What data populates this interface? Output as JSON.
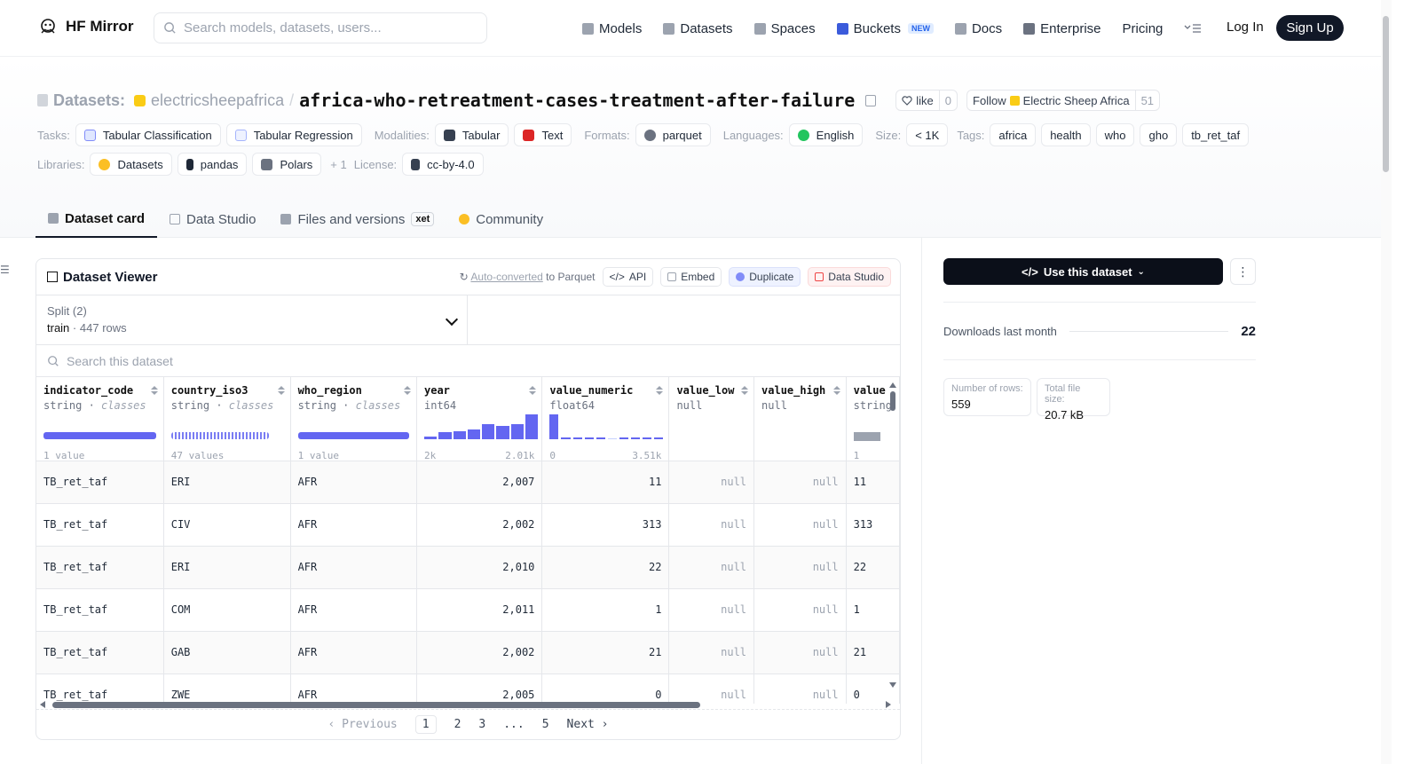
{
  "nav": {
    "brand": "HF Mirror",
    "search_placeholder": "Search models, datasets, users...",
    "links": [
      {
        "label": "Models",
        "icon": "cube-icon"
      },
      {
        "label": "Datasets",
        "icon": "database-icon"
      },
      {
        "label": "Spaces",
        "icon": "grid-icon"
      },
      {
        "label": "Buckets",
        "icon": "bucket-icon",
        "badge": "NEW"
      },
      {
        "label": "Docs",
        "icon": "book-icon"
      },
      {
        "label": "Enterprise",
        "icon": "enterprise-icon"
      },
      {
        "label": "Pricing"
      }
    ],
    "login": "Log In",
    "signup": "Sign Up"
  },
  "header": {
    "section": "Datasets:",
    "org": "electricsheepafrica",
    "name": "africa-who-retreatment-cases-treatment-after-failure",
    "like_label": "like",
    "like_count": "0",
    "follow_label": "Follow",
    "follow_org": "Electric Sheep Africa",
    "follow_count": "51"
  },
  "meta": {
    "tasks_label": "Tasks:",
    "tasks": [
      "Tabular Classification",
      "Tabular Regression"
    ],
    "modalities_label": "Modalities:",
    "modalities": [
      "Tabular",
      "Text"
    ],
    "formats_label": "Formats:",
    "formats": [
      "parquet"
    ],
    "languages_label": "Languages:",
    "languages": [
      "English"
    ],
    "size_label": "Size:",
    "size": "< 1K",
    "tags_label": "Tags:",
    "tags": [
      "africa",
      "health",
      "who",
      "gho",
      "tb_ret_taf"
    ],
    "libraries_label": "Libraries:",
    "libraries": [
      "Datasets",
      "pandas",
      "Polars"
    ],
    "libraries_more": "+ 1",
    "license_label": "License:",
    "license": "cc-by-4.0"
  },
  "tabs": [
    {
      "label": "Dataset card",
      "active": true
    },
    {
      "label": "Data Studio"
    },
    {
      "label": "Files and versions",
      "badge": "xet"
    },
    {
      "label": "Community"
    }
  ],
  "viewer": {
    "title": "Dataset Viewer",
    "auto_converted": "Auto-converted",
    "to_parquet": "to Parquet",
    "buttons": [
      "API",
      "Embed",
      "Duplicate",
      "Data Studio"
    ],
    "split_label": "Split (2)",
    "split_value": "train",
    "split_rows": "447 rows",
    "search_placeholder": "Search this dataset",
    "columns": [
      {
        "name": "indicator_code",
        "type": "string",
        "kind": "classes",
        "stat_left": "1 value",
        "stat_right": ""
      },
      {
        "name": "country_iso3",
        "type": "string",
        "kind": "classes",
        "stat_left": "47 values",
        "stat_right": ""
      },
      {
        "name": "who_region",
        "type": "string",
        "kind": "classes",
        "stat_left": "1 value",
        "stat_right": ""
      },
      {
        "name": "year",
        "type": "int64",
        "kind": "",
        "stat_left": "2k",
        "stat_right": "2.01k"
      },
      {
        "name": "value_numeric",
        "type": "float64",
        "kind": "",
        "stat_left": "0",
        "stat_right": "3.51k"
      },
      {
        "name": "value_low",
        "type": "null",
        "kind": "",
        "stat_left": "",
        "stat_right": ""
      },
      {
        "name": "value_high",
        "type": "null",
        "kind": "",
        "stat_left": "",
        "stat_right": ""
      },
      {
        "name": "value",
        "type": "string",
        "kind": "",
        "stat_left": "1",
        "stat_right": ""
      }
    ],
    "year_hist": [
      0.12,
      0.3,
      0.33,
      0.38,
      0.6,
      0.55,
      0.6,
      1.0
    ],
    "value_hist": [
      1.0,
      0.05,
      0.04,
      0.04,
      0.04,
      0.0,
      0.03,
      0.03,
      0.03,
      0.03
    ],
    "rows": [
      [
        "TB_ret_taf",
        "ERI",
        "AFR",
        "2,007",
        "11",
        "null",
        "null",
        "11"
      ],
      [
        "TB_ret_taf",
        "CIV",
        "AFR",
        "2,002",
        "313",
        "null",
        "null",
        "313"
      ],
      [
        "TB_ret_taf",
        "ERI",
        "AFR",
        "2,010",
        "22",
        "null",
        "null",
        "22"
      ],
      [
        "TB_ret_taf",
        "COM",
        "AFR",
        "2,011",
        "1",
        "null",
        "null",
        "1"
      ],
      [
        "TB_ret_taf",
        "GAB",
        "AFR",
        "2,002",
        "21",
        "null",
        "null",
        "21"
      ],
      [
        "TB_ret_taf",
        "ZWE",
        "AFR",
        "2,005",
        "0",
        "null",
        "null",
        "0"
      ]
    ],
    "pager": {
      "prev": "Previous",
      "pages": [
        "1",
        "2",
        "3",
        "...",
        "5"
      ],
      "current": "1",
      "next": "Next"
    }
  },
  "panel": {
    "use_button": "Use this dataset",
    "downloads_label": "Downloads last month",
    "downloads_value": "22",
    "rows_label": "Number of rows:",
    "rows_value": "559",
    "size_label": "Total file size:",
    "size_value": "20.7 kB"
  },
  "colors": {
    "accent": "#6366f1",
    "dark": "#0b0f19",
    "muted": "#9ca3af"
  }
}
